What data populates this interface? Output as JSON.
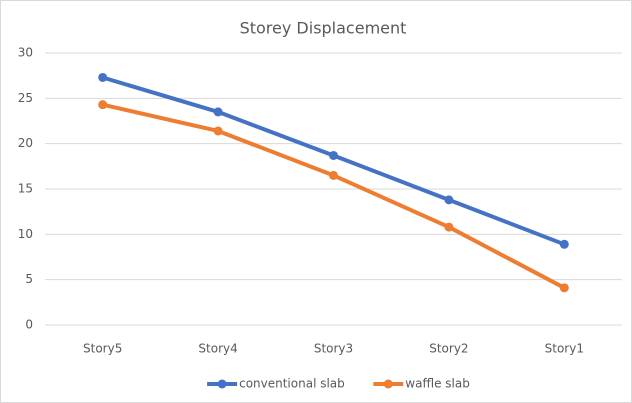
{
  "chart_data": {
    "type": "line",
    "title": "Storey Displacement",
    "categories": [
      "Story5",
      "Story4",
      "Story3",
      "Story2",
      "Story1"
    ],
    "series": [
      {
        "name": "conventional slab",
        "color": "#4472c4",
        "values": [
          27.3,
          23.5,
          18.7,
          13.8,
          8.9
        ]
      },
      {
        "name": "waffle slab",
        "color": "#ed7d31",
        "values": [
          24.3,
          21.4,
          16.5,
          10.8,
          4.1
        ]
      }
    ],
    "ylim": [
      0,
      30
    ],
    "yticks": [
      0,
      5,
      10,
      15,
      20,
      25,
      30
    ],
    "grid": true,
    "legend": "bottom"
  }
}
